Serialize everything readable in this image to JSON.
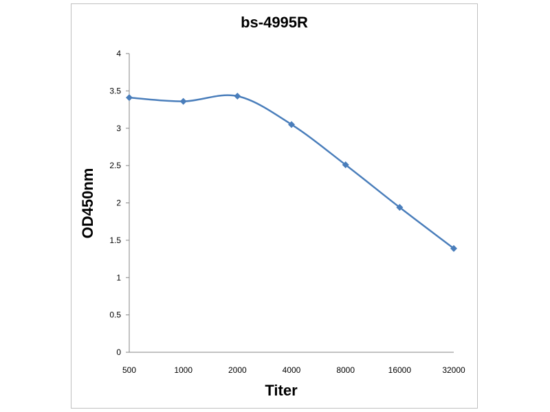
{
  "chart_data": {
    "type": "line",
    "title": "bs-4995R",
    "xlabel": "Titer",
    "ylabel": "OD450nm",
    "categories": [
      "500",
      "1000",
      "2000",
      "4000",
      "8000",
      "16000",
      "32000"
    ],
    "series": [
      {
        "values": [
          3.41,
          3.36,
          3.43,
          3.05,
          2.51,
          1.94,
          1.39
        ],
        "color": "#4a7ebb"
      }
    ],
    "ylim": [
      0,
      4
    ],
    "yticks": [
      "0",
      "0.5",
      "1",
      "1.5",
      "2",
      "2.5",
      "3",
      "3.5",
      "4"
    ],
    "grid": false,
    "legend": "none",
    "smooth": true,
    "marker": "diamond"
  }
}
